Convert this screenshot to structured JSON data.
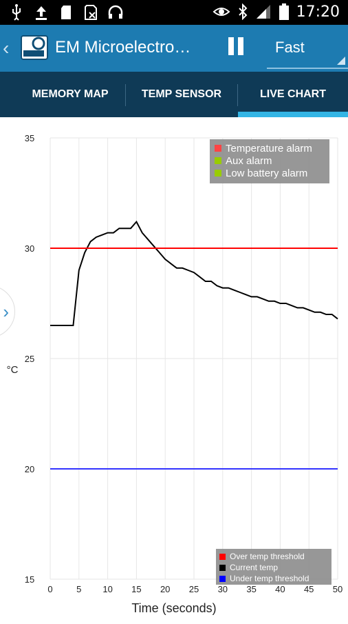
{
  "status_bar": {
    "icons_left": [
      "usb-icon",
      "upload-icon",
      "sd-card-icon",
      "sim-off-icon",
      "headset-icon"
    ],
    "icons_right": [
      "eye-icon",
      "bluetooth-icon",
      "signal-icon",
      "battery-icon"
    ],
    "time": "17:20"
  },
  "action_bar": {
    "back_glyph": "‹",
    "title": "EM Microelectro…",
    "speed": "Fast",
    "accent": "#1d7bb1"
  },
  "tabs": [
    {
      "label": "MEMORY MAP"
    },
    {
      "label": "TEMP SENSOR"
    },
    {
      "label": "LIVE CHART",
      "selected": true
    }
  ],
  "chart_data": {
    "type": "line",
    "xlabel": "Time (seconds)",
    "ylabel": "°C",
    "xlim": [
      0,
      50
    ],
    "ylim": [
      15,
      35
    ],
    "x_ticks": [
      "0",
      "5",
      "10",
      "15",
      "20",
      "25",
      "30",
      "35",
      "40",
      "45",
      "50"
    ],
    "y_ticks": [
      "15",
      "20",
      "25",
      "30",
      "35"
    ],
    "grid": true,
    "series": [
      {
        "name": "Current temp",
        "color": "#000000",
        "x": [
          0,
          4,
          5,
          6,
          7,
          8,
          9,
          10,
          11,
          12,
          13,
          14,
          15,
          16,
          17,
          18,
          19,
          20,
          21,
          22,
          23,
          24,
          25,
          26,
          27,
          28,
          29,
          30,
          31,
          32,
          33,
          34,
          35,
          36,
          37,
          38,
          39,
          40,
          41,
          42,
          43,
          44,
          45,
          46,
          47,
          48,
          49,
          50
        ],
        "y": [
          26.5,
          26.5,
          29.0,
          29.8,
          30.3,
          30.5,
          30.6,
          30.7,
          30.7,
          30.9,
          30.9,
          30.9,
          31.2,
          30.7,
          30.4,
          30.1,
          29.8,
          29.5,
          29.3,
          29.1,
          29.1,
          29.0,
          28.9,
          28.7,
          28.5,
          28.5,
          28.3,
          28.2,
          28.2,
          28.1,
          28.0,
          27.9,
          27.8,
          27.8,
          27.7,
          27.6,
          27.6,
          27.5,
          27.5,
          27.4,
          27.3,
          27.3,
          27.2,
          27.1,
          27.1,
          27.0,
          27.0,
          26.8
        ]
      },
      {
        "name": "Over temp threshold",
        "color": "#ff0000",
        "x": [
          0,
          50
        ],
        "y": [
          30,
          30
        ]
      },
      {
        "name": "Under temp threshold",
        "color": "#3333ff",
        "x": [
          0,
          50
        ],
        "y": [
          20,
          20
        ]
      }
    ],
    "alarm_legend": [
      {
        "label": "Temperature alarm",
        "color": "#ff4444"
      },
      {
        "label": "Aux alarm",
        "color": "#99cc00"
      },
      {
        "label": "Low battery alarm",
        "color": "#99cc00"
      }
    ],
    "series_legend": [
      {
        "label": "Over temp threshold",
        "color": "#ff0000"
      },
      {
        "label": "Current temp",
        "color": "#000000"
      },
      {
        "label": "Under temp threshold",
        "color": "#0000ff"
      }
    ]
  }
}
